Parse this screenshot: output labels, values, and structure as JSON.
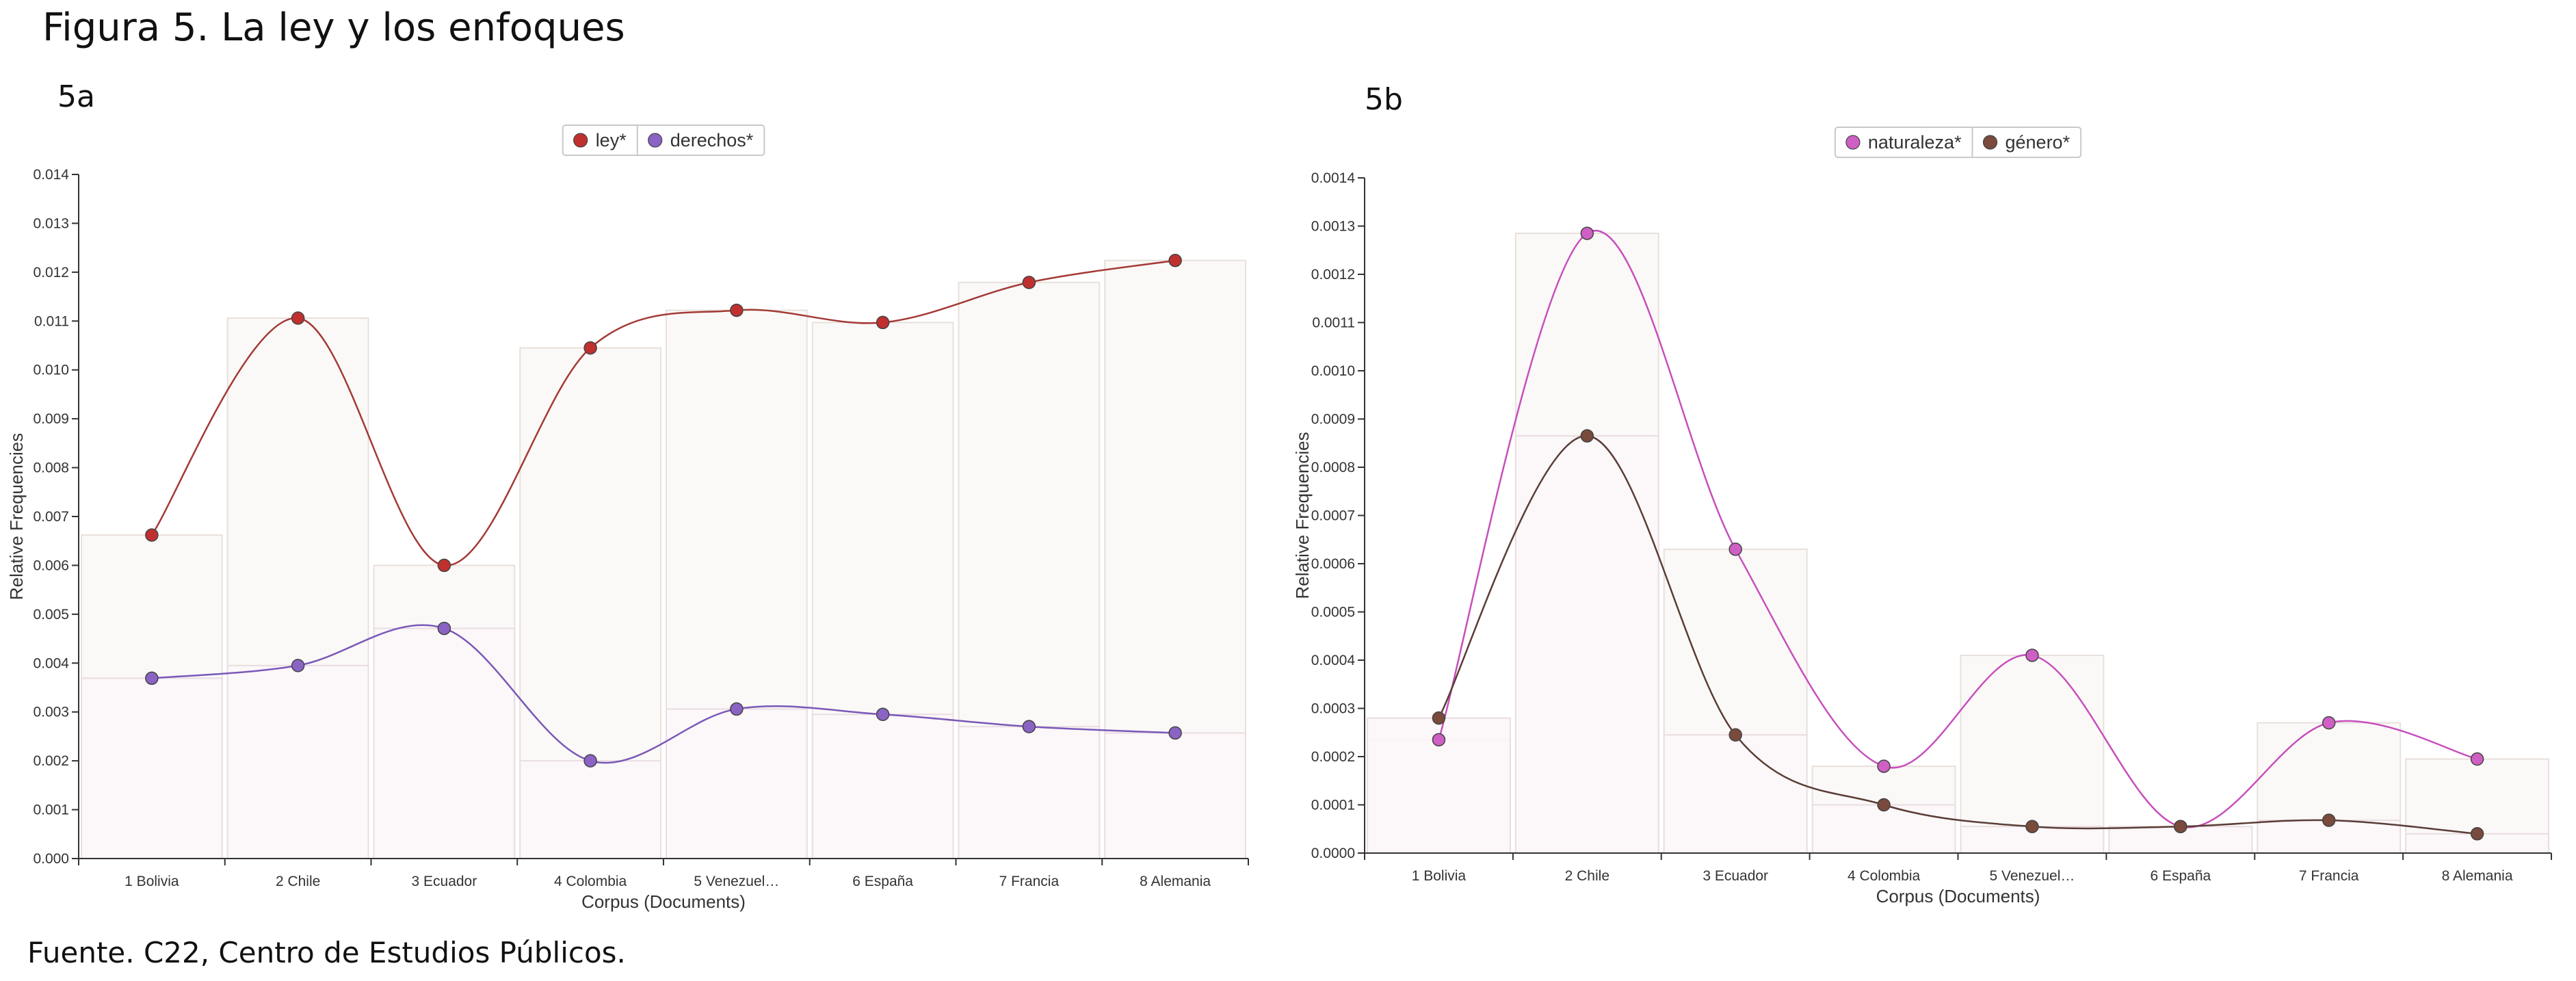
{
  "figure": {
    "title": "Figura 5. La ley y los enfoques",
    "source": "Fuente. C22, Centro de Estudios Públicos."
  },
  "chart_data": [
    {
      "panel_label": "5a",
      "type": "line",
      "bars_underlay": true,
      "xlabel": "Corpus (Documents)",
      "ylabel": "Relative Frequencies",
      "categories": [
        "1 Bolivia",
        "2 Chile",
        "3 Ecuador",
        "4 Colombia",
        "5 Venezuel…",
        "6 España",
        "7 Francia",
        "8 Alemania"
      ],
      "ylim": [
        0,
        0.014
      ],
      "yticks": [
        "0.000",
        "0.001",
        "0.002",
        "0.003",
        "0.004",
        "0.005",
        "0.006",
        "0.007",
        "0.008",
        "0.009",
        "0.010",
        "0.011",
        "0.012",
        "0.013",
        "0.014"
      ],
      "legend_position": "top-center",
      "series": [
        {
          "name": "ley*",
          "color": "#c0302e",
          "line_color": "#a33a36",
          "values": [
            0.00662,
            0.01106,
            0.006,
            0.01045,
            0.01122,
            0.01097,
            0.01179,
            0.01224
          ]
        },
        {
          "name": "derechos*",
          "color": "#8a63c4",
          "line_color": "#7a58b8",
          "values": [
            0.00369,
            0.00395,
            0.00471,
            0.002,
            0.00306,
            0.00295,
            0.0027,
            0.00257
          ]
        }
      ]
    },
    {
      "panel_label": "5b",
      "type": "line",
      "bars_underlay": true,
      "xlabel": "Corpus (Documents)",
      "ylabel": "Relative Frequencies",
      "categories": [
        "1 Bolivia",
        "2 Chile",
        "3 Ecuador",
        "4 Colombia",
        "5 Venezuel…",
        "6 España",
        "7 Francia",
        "8 Alemania"
      ],
      "ylim": [
        0,
        0.0014
      ],
      "yticks": [
        "0.0000",
        "0.0001",
        "0.0002",
        "0.0003",
        "0.0004",
        "0.0005",
        "0.0006",
        "0.0007",
        "0.0008",
        "0.0009",
        "0.0010",
        "0.0011",
        "0.0012",
        "0.0013",
        "0.0014"
      ],
      "legend_position": "top-center",
      "series": [
        {
          "name": "naturaleza*",
          "color": "#cf5fc4",
          "line_color": "#c74fbd",
          "values": [
            0.000235,
            0.001285,
            0.00063,
            0.00018,
            0.00041,
            5.5e-05,
            0.00027,
            0.000195
          ]
        },
        {
          "name": "género*",
          "color": "#7a4a3c",
          "line_color": "#5a3d36",
          "values": [
            0.00028,
            0.000865,
            0.000245,
            0.0001,
            5.5e-05,
            5.5e-05,
            6.8e-05,
            4e-05
          ]
        }
      ]
    }
  ]
}
